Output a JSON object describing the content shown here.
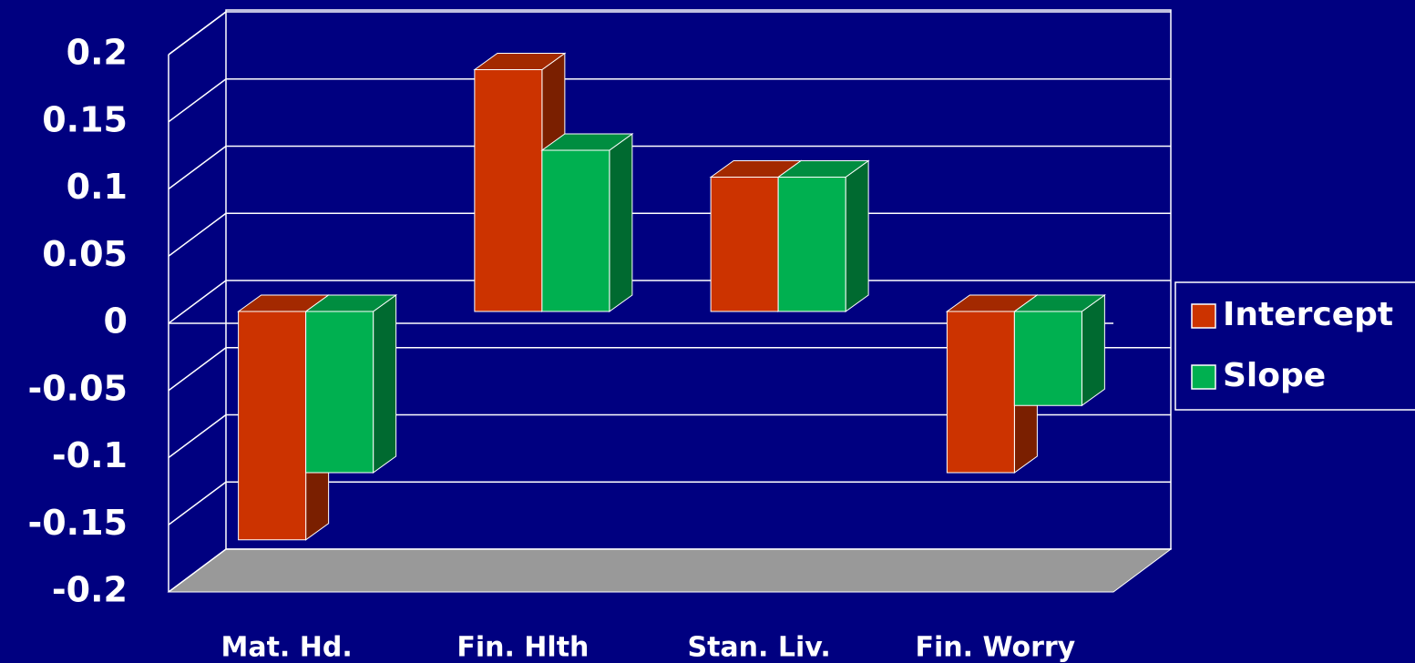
{
  "chart_data": {
    "type": "bar3d",
    "categories": [
      "Mat. Hd.",
      "Fin. Hlth",
      "Stan. Liv.",
      "Fin. Worry"
    ],
    "series": [
      {
        "name": "Intercept",
        "color": "#cc3300",
        "values": [
          -0.17,
          0.18,
          0.1,
          -0.12
        ]
      },
      {
        "name": "Slope",
        "color": "#00b050",
        "values": [
          -0.12,
          0.12,
          0.1,
          -0.07
        ]
      }
    ],
    "ylim": [
      -0.2,
      0.2
    ],
    "yticks": [
      -0.2,
      -0.15,
      -0.1,
      -0.05,
      0,
      0.05,
      0.1,
      0.15,
      0.2
    ],
    "grid": true,
    "legend": "right"
  }
}
